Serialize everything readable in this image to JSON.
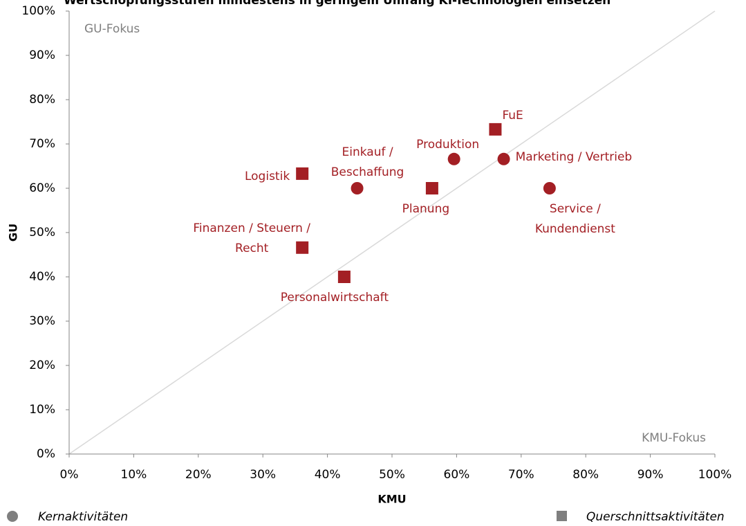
{
  "chart_data": {
    "type": "scatter",
    "title": "Wertschöpfungsstufen mindestens in geringem Umfang KI-Technologien einsetzen",
    "xlabel": "KMU",
    "ylabel": "GU",
    "annotations": [
      "GU-Fokus",
      "KMU-Fokus"
    ],
    "xlim": [
      0,
      100
    ],
    "ylim": [
      0,
      100
    ],
    "xticks": [
      {
        "value": 0,
        "label": "0%"
      },
      {
        "value": 10,
        "label": "10%"
      },
      {
        "value": 20,
        "label": "20%"
      },
      {
        "value": 30,
        "label": "30%"
      },
      {
        "value": 40,
        "label": "40%"
      },
      {
        "value": 50,
        "label": "50%"
      },
      {
        "value": 60,
        "label": "60%"
      },
      {
        "value": 70,
        "label": "70%"
      },
      {
        "value": 80,
        "label": "80%"
      },
      {
        "value": 90,
        "label": "90%"
      },
      {
        "value": 100,
        "label": "100%"
      }
    ],
    "yticks": [
      {
        "value": 0,
        "label": "0%"
      },
      {
        "value": 10,
        "label": "10%"
      },
      {
        "value": 20,
        "label": "20%"
      },
      {
        "value": 30,
        "label": "30%"
      },
      {
        "value": 40,
        "label": "40%"
      },
      {
        "value": 50,
        "label": "50%"
      },
      {
        "value": 60,
        "label": "60%"
      },
      {
        "value": 70,
        "label": "70%"
      },
      {
        "value": 80,
        "label": "80%"
      },
      {
        "value": 90,
        "label": "90%"
      },
      {
        "value": 100,
        "label": "100%"
      }
    ],
    "series": [
      {
        "name": "Kernaktivitäten",
        "marker": "circle",
        "color": "#a31f24",
        "x": [
          44.6,
          59.6,
          67.3,
          74.4
        ],
        "values": [
          60,
          66.6,
          66.6,
          60
        ],
        "labels": [
          [
            "Einkauf /",
            "Beschaffung"
          ],
          [
            "Produktion"
          ],
          [
            "Marketing / Vertrieb"
          ],
          [
            "Service /",
            "Kundendienst"
          ]
        ]
      },
      {
        "name": "Querschnittsaktivitäten",
        "marker": "square",
        "color": "#a31f24",
        "x": [
          36.1,
          66,
          56.2,
          36.1,
          42.6
        ],
        "values": [
          63.3,
          73.3,
          60,
          46.6,
          40
        ],
        "labels": [
          [
            "Logistik"
          ],
          [
            "FuE"
          ],
          [
            "Planung"
          ],
          [
            "Finanzen / Steuern /",
            "Recht"
          ],
          [
            "Personalwirtschaft"
          ]
        ]
      }
    ]
  }
}
